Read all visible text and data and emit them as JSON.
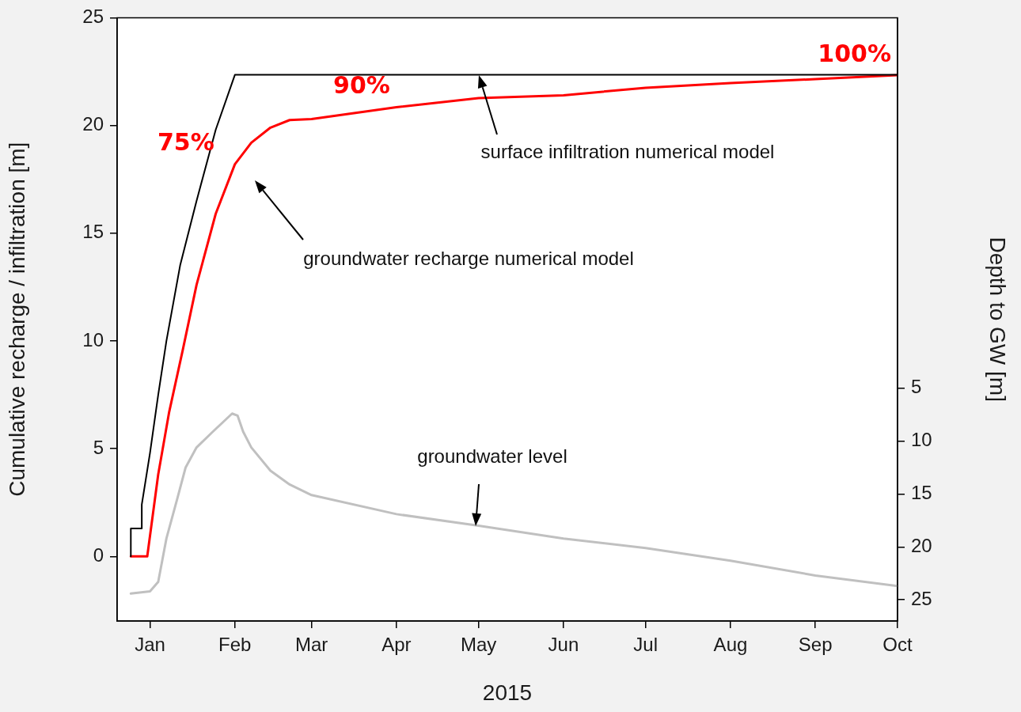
{
  "chart_data": {
    "type": "line",
    "xlabel": "2015",
    "ylabel": "Cumulative recharge / infiltration [m]",
    "y2label": "Depth to GW [m]",
    "xlim": [
      "2014-12-20",
      "2015-10-01"
    ],
    "xticks": [
      {
        "value": "2015-01-01",
        "label": "Jan"
      },
      {
        "value": "2015-02-01",
        "label": "Feb"
      },
      {
        "value": "2015-03-01",
        "label": "Mar"
      },
      {
        "value": "2015-04-01",
        "label": "Apr"
      },
      {
        "value": "2015-05-01",
        "label": "May"
      },
      {
        "value": "2015-06-01",
        "label": "Jun"
      },
      {
        "value": "2015-07-01",
        "label": "Jul"
      },
      {
        "value": "2015-08-01",
        "label": "Aug"
      },
      {
        "value": "2015-09-01",
        "label": "Sep"
      },
      {
        "value": "2015-10-01",
        "label": "Oct"
      }
    ],
    "ylim": [
      -3,
      25
    ],
    "yticks": [
      0,
      5,
      10,
      15,
      20,
      25
    ],
    "y2lim": [
      27,
      -30
    ],
    "y2ticks": [
      5,
      10,
      15,
      20,
      25
    ],
    "marker": "none",
    "line_style": "solid",
    "legend": false,
    "series": [
      {
        "color": "#000000",
        "x": [
          "2014-12-25",
          "2014-12-25",
          "2014-12-29",
          "2014-12-29",
          "2015-01-01",
          "2015-01-04",
          "2015-01-07",
          "2015-01-12",
          "2015-01-18",
          "2015-01-25",
          "2015-02-01",
          "2015-10-01"
        ],
        "values": [
          0,
          1.3,
          1.3,
          2.4,
          4.8,
          7.5,
          10,
          13.5,
          16.5,
          19.8,
          22.35,
          22.35
        ]
      },
      {
        "color": "#ff0000",
        "x": [
          "2014-12-25",
          "2014-12-31",
          "2015-01-04",
          "2015-01-08",
          "2015-01-13",
          "2015-01-18",
          "2015-01-25",
          "2015-02-01",
          "2015-02-07",
          "2015-02-14",
          "2015-02-21",
          "2015-03-01",
          "2015-04-01",
          "2015-05-01",
          "2015-06-01",
          "2015-07-01",
          "2015-08-01",
          "2015-09-01",
          "2015-10-01"
        ],
        "values": [
          0,
          0,
          3.8,
          6.7,
          9.6,
          12.6,
          15.9,
          18.2,
          19.2,
          19.9,
          20.25,
          20.3,
          20.85,
          21.27,
          21.4,
          21.75,
          21.97,
          22.15,
          22.33
        ]
      },
      {
        "color": "#c0c0c0",
        "axis": "y2",
        "x": [
          "2014-12-25",
          "2015-01-01",
          "2015-01-04",
          "2015-01-07",
          "2015-01-11",
          "2015-01-14",
          "2015-01-18",
          "2015-01-24",
          "2015-01-31",
          "2015-02-02",
          "2015-02-04",
          "2015-02-07",
          "2015-02-14",
          "2015-02-21",
          "2015-03-01",
          "2015-04-01",
          "2015-05-01",
          "2015-06-01",
          "2015-07-01",
          "2015-08-01",
          "2015-09-01",
          "2015-10-01"
        ],
        "values": [
          24.4,
          24.2,
          23.3,
          19.2,
          15.4,
          12.5,
          10.6,
          9.1,
          7.4,
          7.6,
          9.1,
          10.6,
          12.8,
          14.1,
          15.1,
          16.9,
          18.0,
          19.2,
          20.1,
          21.3,
          22.7,
          23.7
        ]
      }
    ],
    "annotations": [
      "surface infiltration numerical model",
      "groundwater recharge numerical model",
      "groundwater level",
      {
        "text": "75%",
        "x": "2015-02-01",
        "y": 18.2
      },
      {
        "text": "90%",
        "x": "2015-04-01",
        "y": 20.85
      },
      {
        "text": "100%",
        "x": "2015-10-01",
        "y": 22.33
      }
    ]
  }
}
